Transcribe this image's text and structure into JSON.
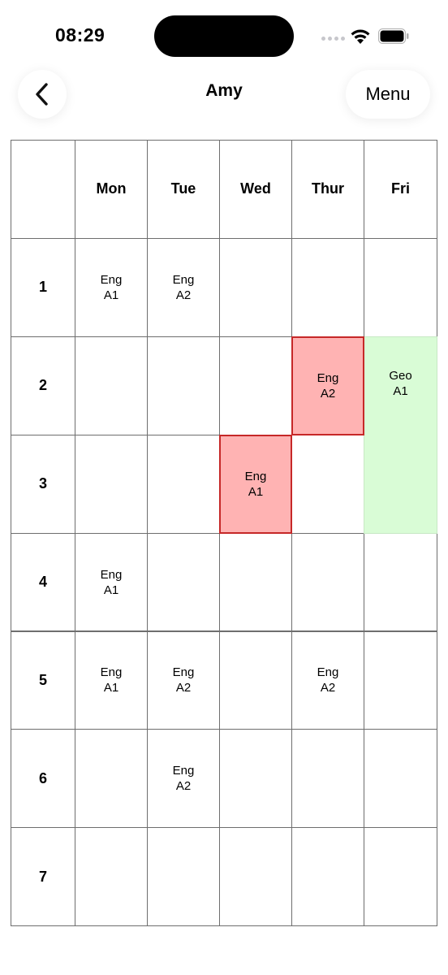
{
  "status_bar": {
    "time": "08:29"
  },
  "header": {
    "title": "Amy",
    "back_icon": "chevron-left-icon",
    "menu_label": "Menu"
  },
  "colors": {
    "conflict_bg": "#ffb3b3",
    "conflict_border": "#c62828",
    "highlight_bg": "#d9fcd6",
    "grid_line": "#6e6e6e"
  },
  "days": [
    "Mon",
    "Tue",
    "Wed",
    "Thur",
    "Fri"
  ],
  "periods": [
    "1",
    "2",
    "3",
    "4",
    "5",
    "6",
    "7"
  ],
  "lessons": [
    {
      "day": 0,
      "period": 0,
      "span": 1,
      "subject": "Eng",
      "group": "A1",
      "state": "normal"
    },
    {
      "day": 1,
      "period": 0,
      "span": 1,
      "subject": "Eng",
      "group": "A2",
      "state": "normal"
    },
    {
      "day": 3,
      "period": 1,
      "span": 1,
      "subject": "Eng",
      "group": "A2",
      "state": "conflict"
    },
    {
      "day": 4,
      "period": 1,
      "span": 2,
      "subject": "Geo",
      "group": "A1",
      "state": "highlight"
    },
    {
      "day": 2,
      "period": 2,
      "span": 1,
      "subject": "Eng",
      "group": "A1",
      "state": "conflict"
    },
    {
      "day": 0,
      "period": 3,
      "span": 1,
      "subject": "Eng",
      "group": "A1",
      "state": "normal"
    },
    {
      "day": 0,
      "period": 4,
      "span": 1,
      "subject": "Eng",
      "group": "A1",
      "state": "normal"
    },
    {
      "day": 1,
      "period": 4,
      "span": 1,
      "subject": "Eng",
      "group": "A2",
      "state": "normal"
    },
    {
      "day": 3,
      "period": 4,
      "span": 1,
      "subject": "Eng",
      "group": "A2",
      "state": "normal"
    },
    {
      "day": 1,
      "period": 5,
      "span": 1,
      "subject": "Eng",
      "group": "A2",
      "state": "normal"
    }
  ]
}
